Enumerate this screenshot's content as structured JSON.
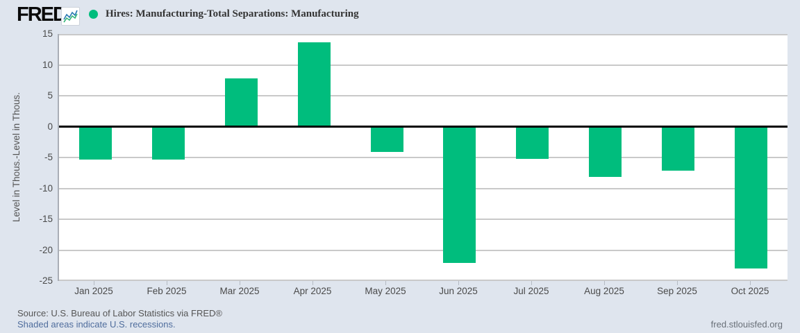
{
  "header": {
    "logo_text": "FRED",
    "logo_reg": "®",
    "legend_label": "Hires: Manufacturing-Total Separations: Manufacturing"
  },
  "chart_data": {
    "type": "bar",
    "title": "Hires: Manufacturing-Total Separations: Manufacturing",
    "categories": [
      "Jan 2025",
      "Feb 2025",
      "Mar 2025",
      "Apr 2025",
      "May 2025",
      "Jun 2025",
      "Jul 2025",
      "Aug 2025",
      "Sep 2025",
      "Oct 2025"
    ],
    "values": [
      -5.3,
      -5.3,
      7.8,
      13.7,
      -4.1,
      -22.0,
      -5.2,
      -8.1,
      -7.1,
      -22.9
    ],
    "xlabel": "",
    "ylabel": "Level in Thous.-Level in Thous.",
    "ylim": [
      -25,
      15
    ],
    "yticks": [
      15,
      10,
      5,
      0,
      -5,
      -10,
      -15,
      -20,
      -25
    ],
    "grid": true,
    "zero_line": true,
    "legend_position": "top-left"
  },
  "footer": {
    "source": "Source: U.S. Bureau of Labor Statistics via FRED®",
    "recession_note": "Shaded areas indicate U.S. recessions.",
    "site": "fred.stlouisfed.org"
  },
  "colors": {
    "bar": "#00bd7d",
    "background": "#dfe5ee",
    "plot_background": "#ffffff",
    "gridline": "#c9c9c9",
    "zero_line": "#000000",
    "link": "#4f6d9d",
    "logo_icon_blue": "#2678b2",
    "logo_icon_green": "#35b57a"
  }
}
